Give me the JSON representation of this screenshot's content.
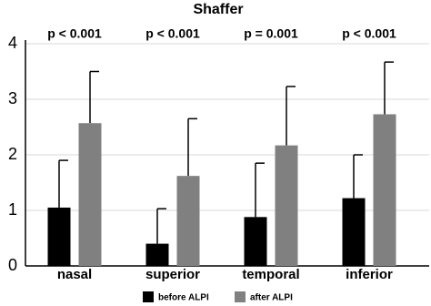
{
  "chart_data": {
    "type": "bar",
    "title": "Shaffer",
    "categories": [
      "nasal",
      "superior",
      "temporal",
      "inferior"
    ],
    "annotations": [
      "p < 0.001",
      "p < 0.001",
      "p = 0.001",
      "p < 0.001"
    ],
    "series": [
      {
        "name": "before ALPI",
        "color": "#000000",
        "values": [
          1.05,
          0.4,
          0.88,
          1.22
        ],
        "errors": [
          0.85,
          0.63,
          0.97,
          0.78
        ]
      },
      {
        "name": "after ALPI",
        "color": "#808080",
        "values": [
          2.57,
          1.62,
          2.17,
          2.73
        ],
        "errors": [
          0.93,
          1.03,
          1.06,
          0.94
        ]
      }
    ],
    "ylim": [
      0,
      4
    ],
    "yticks": [
      0,
      1,
      2,
      3,
      4
    ],
    "grid": true
  }
}
